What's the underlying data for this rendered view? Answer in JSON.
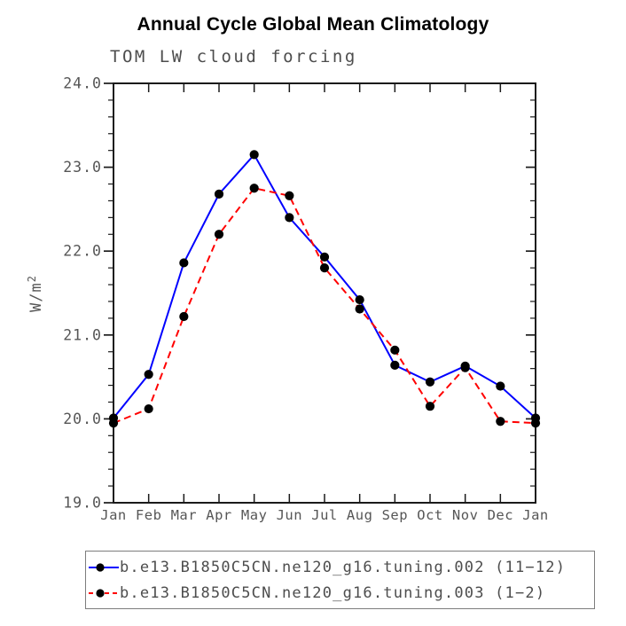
{
  "title": "Annual Cycle Global Mean Climatology",
  "subtitle": "TOM LW cloud forcing",
  "colors": {
    "axis": "#1a1a1a",
    "tick_label_text": "#565656",
    "label_text": "#4d4d4d",
    "series_blue": "#0000ff",
    "series_red": "#ff0000",
    "marker": "#000000",
    "legend_border": "#7d7d7d",
    "background": "#ffffff"
  },
  "chart_data": {
    "type": "line",
    "categories": [
      "Jan",
      "Feb",
      "Mar",
      "Apr",
      "May",
      "Jun",
      "Jul",
      "Aug",
      "Sep",
      "Oct",
      "Nov",
      "Dec",
      "Jan"
    ],
    "xlabel": "",
    "ylabel": "W/m²",
    "ylim": [
      19.0,
      24.0
    ],
    "ytick_interval": 1.0,
    "ytick_labels": [
      "19.0",
      "20.0",
      "21.0",
      "22.0",
      "23.0",
      "24.0"
    ],
    "minor_ticks_per_major": 4,
    "grid": false,
    "legend_position": "bottom",
    "marker": "filled-circle",
    "series": [
      {
        "name": "b.e13.B1850C5CN.ne120_g16.tuning.002 (11−12)",
        "color": "#0000ff",
        "style": "solid",
        "values": [
          20.01,
          20.53,
          21.86,
          22.68,
          23.15,
          22.4,
          21.93,
          21.42,
          20.64,
          20.44,
          20.63,
          20.39,
          20.01
        ]
      },
      {
        "name": "b.e13.B1850C5CN.ne120_g16.tuning.003 (1−2)",
        "color": "#ff0000",
        "style": "dashed",
        "values": [
          19.95,
          20.12,
          21.22,
          22.2,
          22.75,
          22.66,
          21.8,
          21.31,
          20.82,
          20.15,
          20.61,
          19.97,
          19.95
        ]
      }
    ]
  }
}
